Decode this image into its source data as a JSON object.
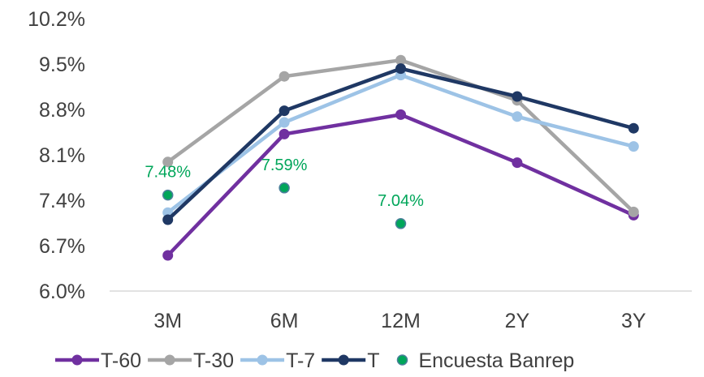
{
  "chart_data": {
    "type": "line",
    "title": "",
    "xlabel": "",
    "ylabel": "",
    "categories": [
      "3M",
      "6M",
      "12M",
      "2Y",
      "3Y"
    ],
    "y_ticks": [
      "10.2%",
      "9.5%",
      "8.8%",
      "8.1%",
      "7.4%",
      "6.7%",
      "6.0%"
    ],
    "ylim": [
      6.0,
      10.2
    ],
    "grid": false,
    "legend_position": "bottom",
    "series": [
      {
        "name": "T-60",
        "color": "#7030A0",
        "values": [
          6.55,
          8.42,
          8.72,
          7.98,
          7.17
        ],
        "marker": true,
        "line": true
      },
      {
        "name": "T-30",
        "color": "#A5A5A5",
        "values": [
          7.99,
          9.31,
          9.56,
          8.94,
          7.22
        ],
        "marker": true,
        "line": true
      },
      {
        "name": "T-7",
        "color": "#9DC3E6",
        "values": [
          7.21,
          8.6,
          9.33,
          8.69,
          8.23
        ],
        "marker": true,
        "line": true
      },
      {
        "name": "T",
        "color": "#1F3864",
        "values": [
          7.1,
          8.78,
          9.43,
          9.0,
          8.51
        ],
        "marker": true,
        "line": true
      },
      {
        "name": "Encuesta Banrep",
        "color": "#00A65A",
        "values": [
          7.48,
          7.59,
          7.04,
          null,
          null
        ],
        "marker": true,
        "line": false,
        "data_labels": [
          "7.48%",
          "7.59%",
          "7.04%",
          null,
          null
        ]
      }
    ]
  }
}
